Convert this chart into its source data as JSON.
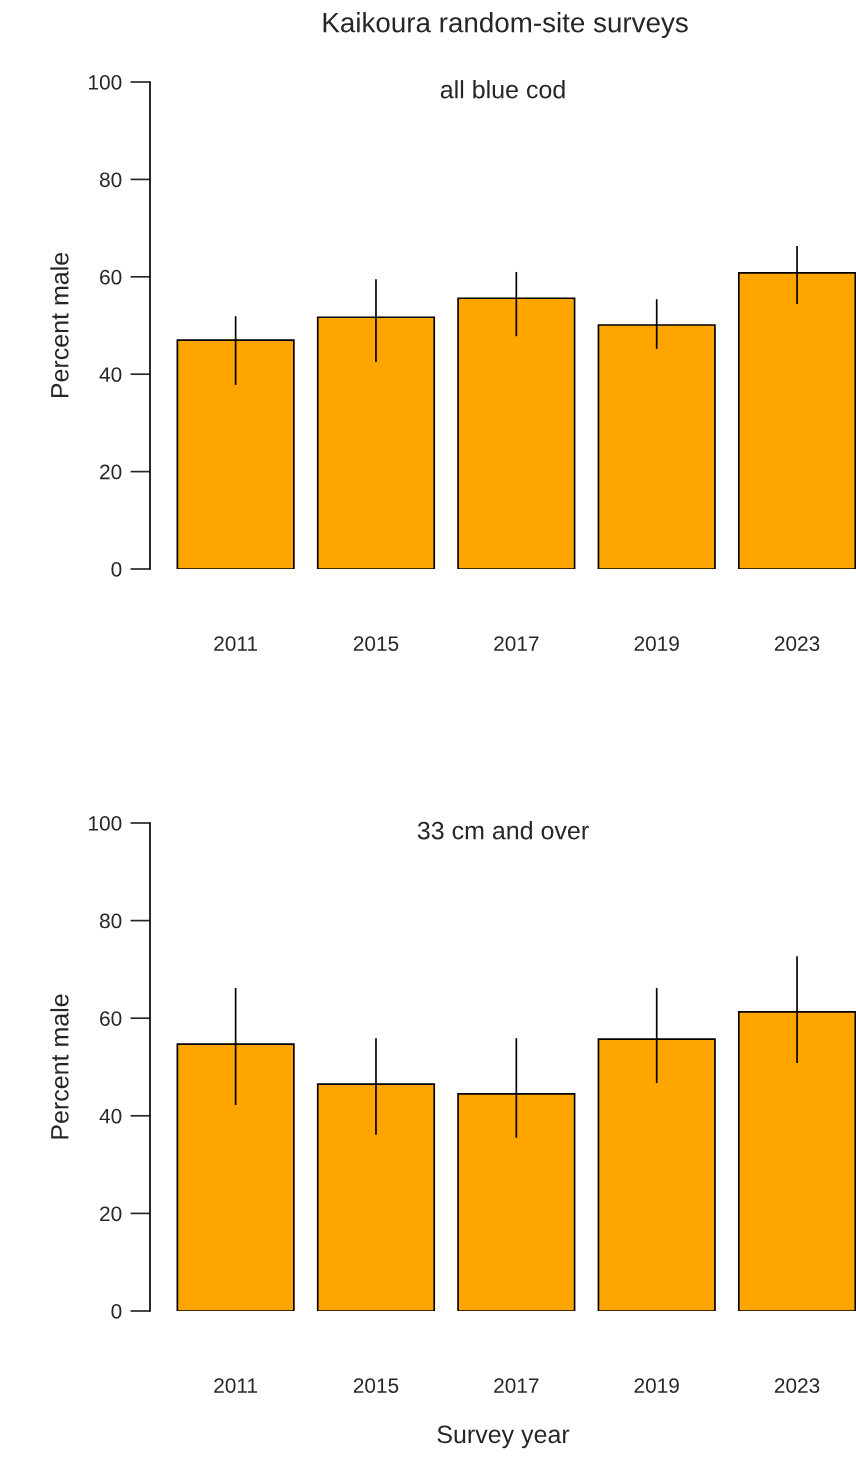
{
  "chart_data": [
    {
      "type": "bar",
      "title": "Kaikoura random-site surveys",
      "subtitle": "all blue cod",
      "ylabel": "Percent male",
      "categories": [
        "2011",
        "2015",
        "2017",
        "2019",
        "2023"
      ],
      "color": "#ffa500",
      "values": [
        47.0,
        51.7,
        55.6,
        50.1,
        60.8
      ],
      "errors": [
        [
          37.8,
          51.9
        ],
        [
          42.5,
          59.5
        ],
        [
          47.8,
          61.0
        ],
        [
          45.2,
          55.4
        ],
        [
          54.4,
          66.3
        ]
      ],
      "ylim": [
        0,
        100
      ],
      "yticks": [
        0,
        20,
        40,
        60,
        80,
        100
      ]
    },
    {
      "type": "bar",
      "subtitle": "33 cm and over",
      "xlabel": "Survey year",
      "ylabel": "Percent male",
      "categories": [
        "2011",
        "2015",
        "2017",
        "2019",
        "2023"
      ],
      "color": "#ffa500",
      "values": [
        54.7,
        46.5,
        44.5,
        55.7,
        61.3
      ],
      "errors": [
        [
          42.2,
          66.2
        ],
        [
          36.1,
          55.9
        ],
        [
          35.5,
          55.9
        ],
        [
          46.7,
          66.2
        ],
        [
          50.8,
          72.7
        ]
      ],
      "ylim": [
        0,
        100
      ],
      "yticks": [
        0,
        20,
        40,
        60,
        80,
        100
      ]
    }
  ]
}
